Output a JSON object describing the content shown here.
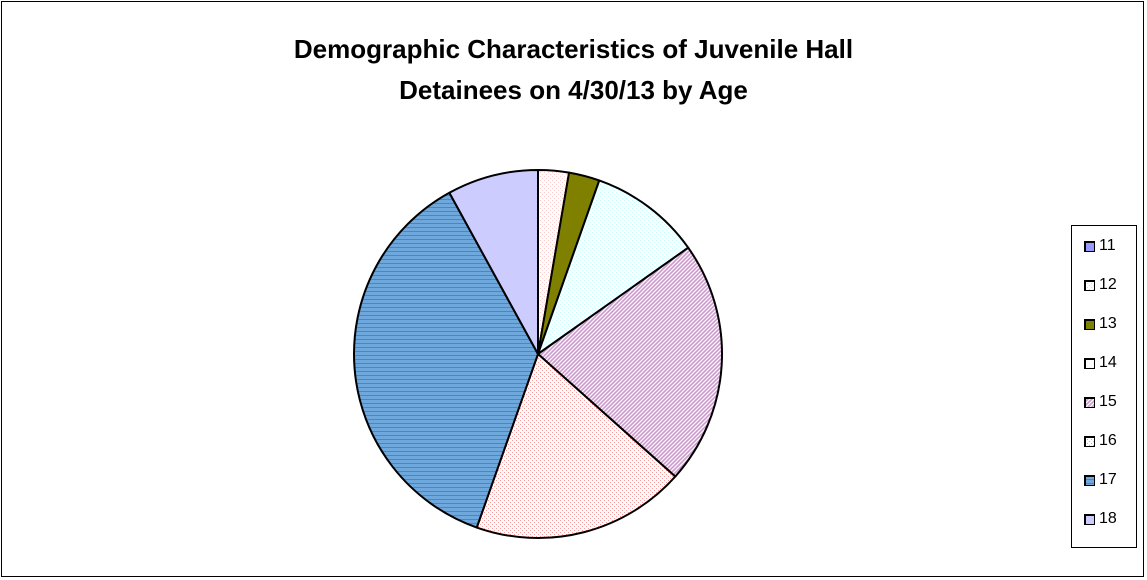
{
  "chart_data": {
    "type": "pie",
    "title_lines": [
      "Demographic Characteristics of Juvenile Hall",
      "Detainees on 4/30/13 by Age"
    ],
    "categories": [
      "11",
      "12",
      "13",
      "14",
      "15",
      "16",
      "17",
      "18"
    ],
    "values": [
      0.0,
      2.7,
      2.7,
      9.8,
      21.4,
      18.8,
      36.6,
      8.0
    ],
    "colors": [
      "#9999ff",
      "#ffcccc",
      "#808000",
      "#ccffff",
      "#cc99cc",
      "#ff9999",
      "#6fa8dc",
      "#ccccff"
    ],
    "patterns": [
      "solid",
      "dots",
      "solid",
      "dots",
      "diagonal",
      "dots",
      "horizontal",
      "solid"
    ],
    "legend_position": "right"
  }
}
